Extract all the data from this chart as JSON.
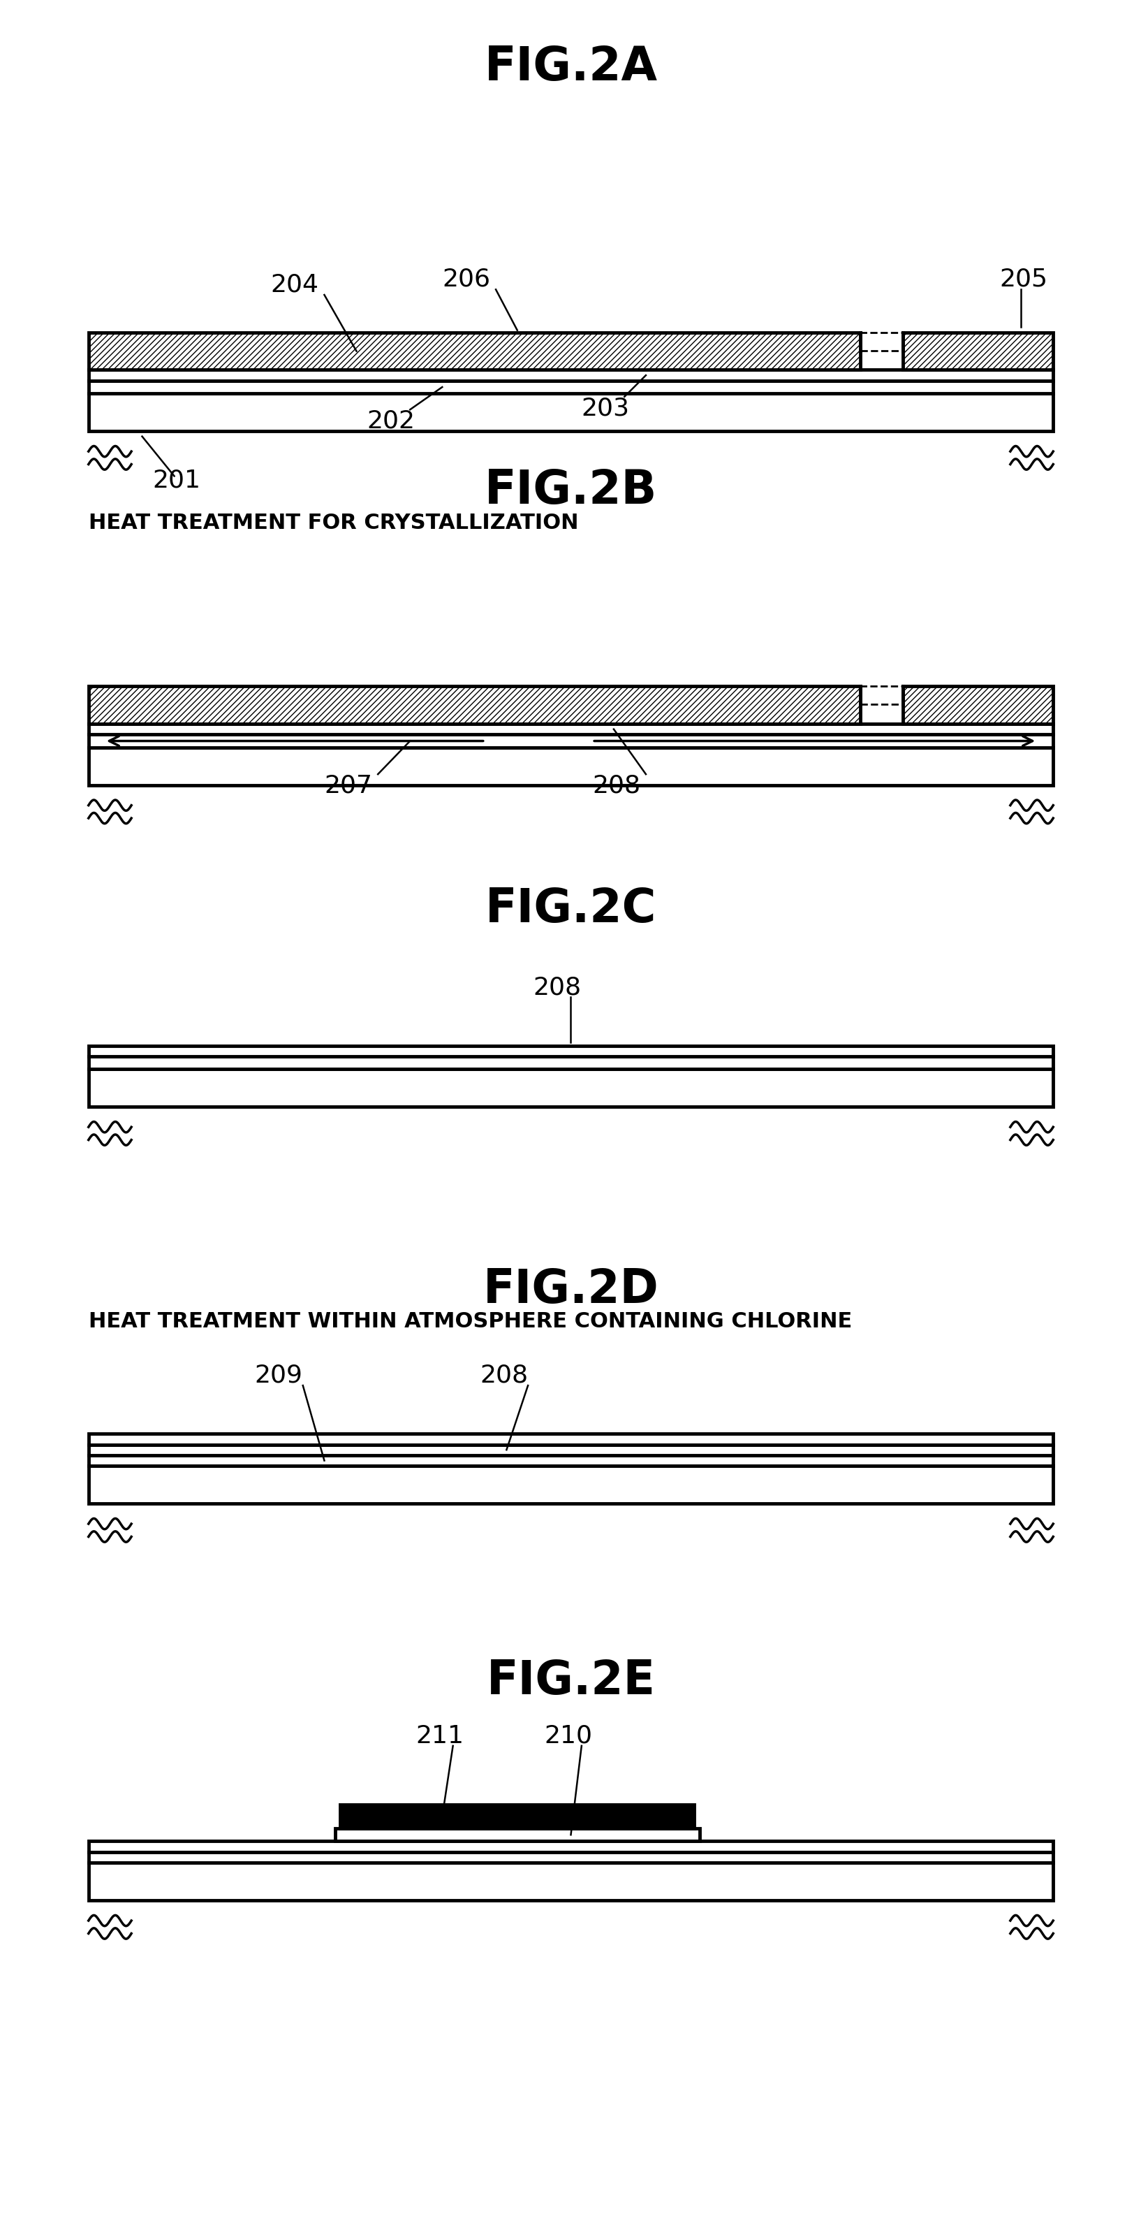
{
  "fig_titles": [
    "FIG.2A",
    "FIG.2B",
    "FIG.2C",
    "FIG.2D",
    "FIG.2E"
  ],
  "title_fontsize": 48,
  "label_fontsize": 26,
  "subtitle_fontsize": 22,
  "subtitle_2B": "HEAT TREATMENT FOR CRYSTALLIZATION",
  "subtitle_2D": "HEAT TREATMENT WITHIN ATMOSPHERE CONTAINING CHLORINE",
  "bg_color": "#ffffff",
  "lw_thick": 3.5,
  "lw_thin": 2.0,
  "lw_squiggle": 2.5
}
